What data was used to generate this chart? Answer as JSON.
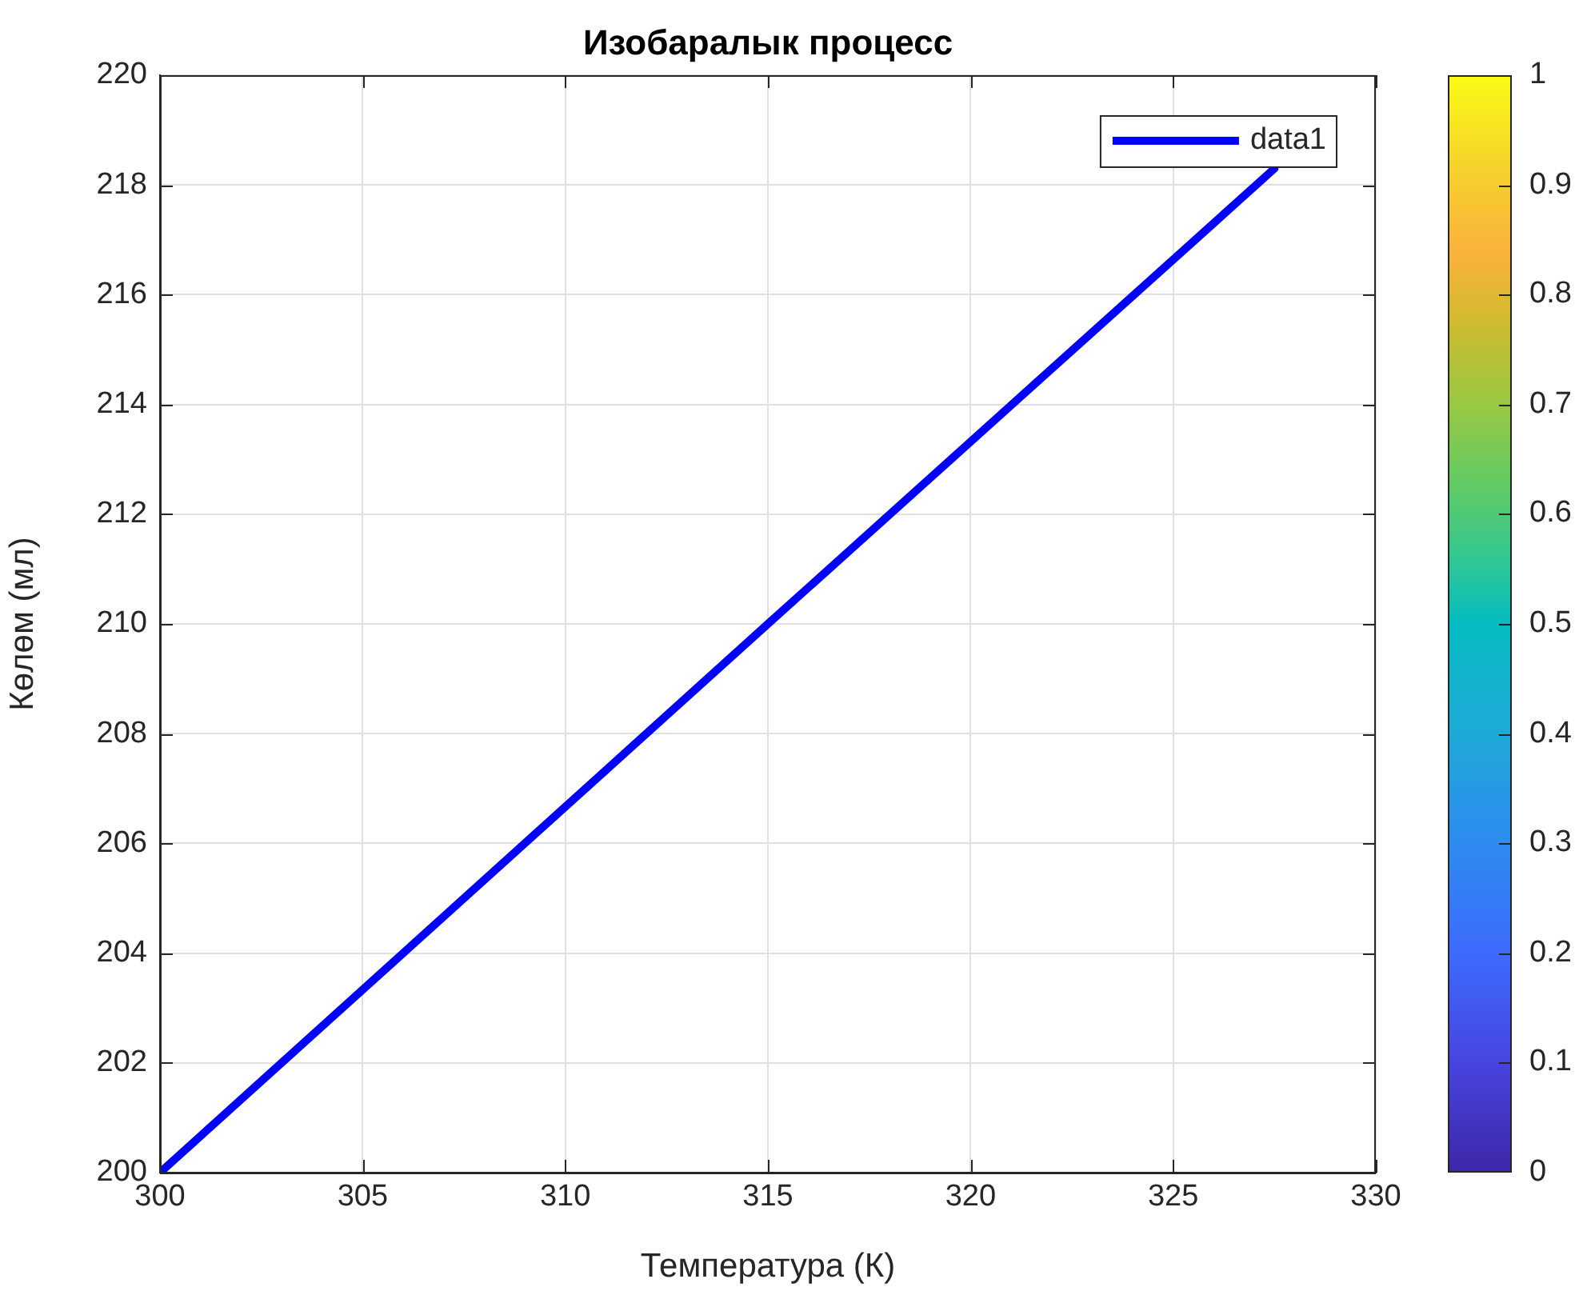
{
  "chart_data": {
    "type": "line",
    "title": "Изобаралык процесс",
    "xlabel": "Температура (К)",
    "ylabel": "Көлөм (мл)",
    "x": [
      300,
      315,
      327.5
    ],
    "series": [
      {
        "name": "data1",
        "color": "#0000ff",
        "values": [
          200,
          210,
          218.3
        ]
      }
    ],
    "xlim": [
      300,
      330
    ],
    "xticks": [
      300,
      305,
      310,
      315,
      320,
      325,
      330
    ],
    "ylim": [
      200,
      220
    ],
    "yticks": [
      200,
      202,
      204,
      206,
      208,
      210,
      212,
      214,
      216,
      218,
      220
    ],
    "clim": [
      0,
      1
    ],
    "cticks": [
      0,
      0.1,
      0.2,
      0.3,
      0.4,
      0.5,
      0.6,
      0.7,
      0.8,
      0.9,
      1
    ],
    "grid": true,
    "legend": "top right",
    "marker": "none",
    "line_style": "solid"
  }
}
